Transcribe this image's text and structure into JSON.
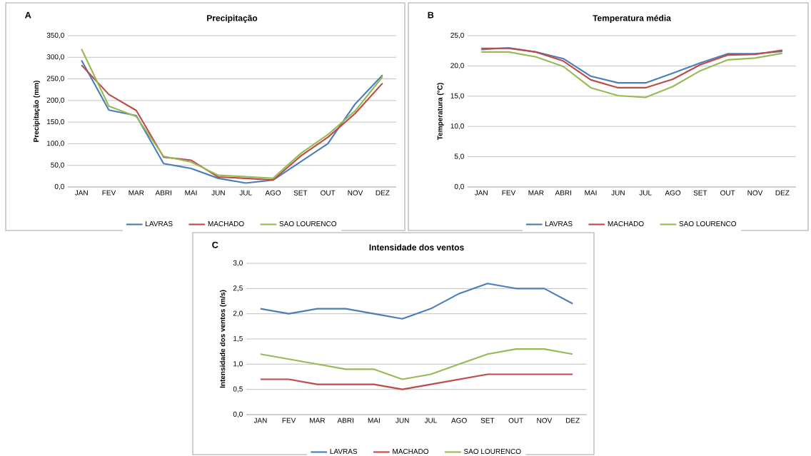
{
  "chart_data": [
    {
      "type": "line",
      "title": "Precipitação",
      "ylabel": "Precipitação  (mm)",
      "annotations": [
        "A"
      ],
      "categories": [
        "JAN",
        "FEV",
        "MAR",
        "ABRI",
        "MAI",
        "JUN",
        "JUL",
        "AGO",
        "SET",
        "OUT",
        "NOV",
        "DEZ"
      ],
      "series": [
        {
          "name": "LAVRAS",
          "color": "#4a7ebb",
          "values": [
            293,
            178,
            165,
            54,
            43,
            20,
            9,
            16,
            58,
            100,
            192,
            259
          ]
        },
        {
          "name": "MACHADO",
          "color": "#be4b48",
          "values": [
            282,
            214,
            177,
            69,
            62,
            23,
            20,
            16,
            71,
            115,
            170,
            240
          ]
        },
        {
          "name": "SAO LOURENCO",
          "color": "#98b954",
          "values": [
            319,
            187,
            163,
            71,
            58,
            27,
            24,
            20,
            77,
            121,
            176,
            255
          ]
        }
      ],
      "ylim": [
        0,
        350
      ],
      "yticks": [
        {
          "value": 0,
          "label": "0,0"
        },
        {
          "value": 50,
          "label": "50,0"
        },
        {
          "value": 100,
          "label": "100,0"
        },
        {
          "value": 150,
          "label": "150,0"
        },
        {
          "value": 200,
          "label": "200,0"
        },
        {
          "value": 250,
          "label": "250,0"
        },
        {
          "value": 300,
          "label": "300,0"
        },
        {
          "value": 350,
          "label": "350,0"
        }
      ],
      "grid": "y",
      "legend": "bottom"
    },
    {
      "type": "line",
      "title": "Temperatura média",
      "ylabel": "Temperatura (°C)",
      "annotations": [
        "B"
      ],
      "categories": [
        "JAN",
        "FEV",
        "MAR",
        "ABRI",
        "MAI",
        "JUN",
        "JUL",
        "AGO",
        "SET",
        "OUT",
        "NOV",
        "DEZ"
      ],
      "series": [
        {
          "name": "LAVRAS",
          "color": "#4a7ebb",
          "values": [
            22.7,
            23.0,
            22.3,
            21.2,
            18.3,
            17.2,
            17.2,
            18.8,
            20.5,
            22.0,
            22.0,
            22.4
          ]
        },
        {
          "name": "MACHADO",
          "color": "#be4b48",
          "values": [
            22.9,
            22.9,
            22.3,
            20.8,
            17.7,
            16.4,
            16.4,
            17.8,
            20.2,
            21.8,
            21.9,
            22.6
          ]
        },
        {
          "name": "SAO LOURENCO",
          "color": "#98b954",
          "values": [
            22.3,
            22.3,
            21.5,
            19.9,
            16.4,
            15.1,
            14.8,
            16.6,
            19.2,
            21.0,
            21.3,
            22.1
          ]
        }
      ],
      "ylim": [
        0,
        25
      ],
      "yticks": [
        {
          "value": 0,
          "label": "0,0"
        },
        {
          "value": 5,
          "label": "5,0"
        },
        {
          "value": 10,
          "label": "10,0"
        },
        {
          "value": 15,
          "label": "15,0"
        },
        {
          "value": 20,
          "label": "20,0"
        },
        {
          "value": 25,
          "label": "25,0"
        }
      ],
      "grid": "y",
      "legend": "bottom"
    },
    {
      "type": "line",
      "title": "Intensidade dos ventos",
      "ylabel": "Intensidade dos ventos (m/s)",
      "annotations": [
        "C"
      ],
      "categories": [
        "JAN",
        "FEV",
        "MAR",
        "ABRI",
        "MAI",
        "JUN",
        "JUL",
        "AGO",
        "SET",
        "OUT",
        "NOV",
        "DEZ"
      ],
      "series": [
        {
          "name": "LAVRAS",
          "color": "#4a7ebb",
          "values": [
            2.1,
            2.0,
            2.1,
            2.1,
            2.0,
            1.9,
            2.1,
            2.4,
            2.6,
            2.5,
            2.5,
            2.2
          ]
        },
        {
          "name": "MACHADO",
          "color": "#be4b48",
          "values": [
            0.7,
            0.7,
            0.6,
            0.6,
            0.6,
            0.5,
            0.6,
            0.7,
            0.8,
            0.8,
            0.8,
            0.8
          ]
        },
        {
          "name": "SAO LOURENCO",
          "color": "#98b954",
          "values": [
            1.2,
            1.1,
            1.0,
            0.9,
            0.9,
            0.7,
            0.8,
            1.0,
            1.2,
            1.3,
            1.3,
            1.2
          ]
        }
      ],
      "ylim": [
        0,
        3
      ],
      "yticks": [
        {
          "value": 0,
          "label": "0,0"
        },
        {
          "value": 0.5,
          "label": "0,5"
        },
        {
          "value": 1,
          "label": "1,0"
        },
        {
          "value": 1.5,
          "label": "1,5"
        },
        {
          "value": 2,
          "label": "2,0"
        },
        {
          "value": 2.5,
          "label": "2,5"
        },
        {
          "value": 3,
          "label": "3,0"
        }
      ],
      "grid": "y",
      "legend": "bottom"
    }
  ]
}
